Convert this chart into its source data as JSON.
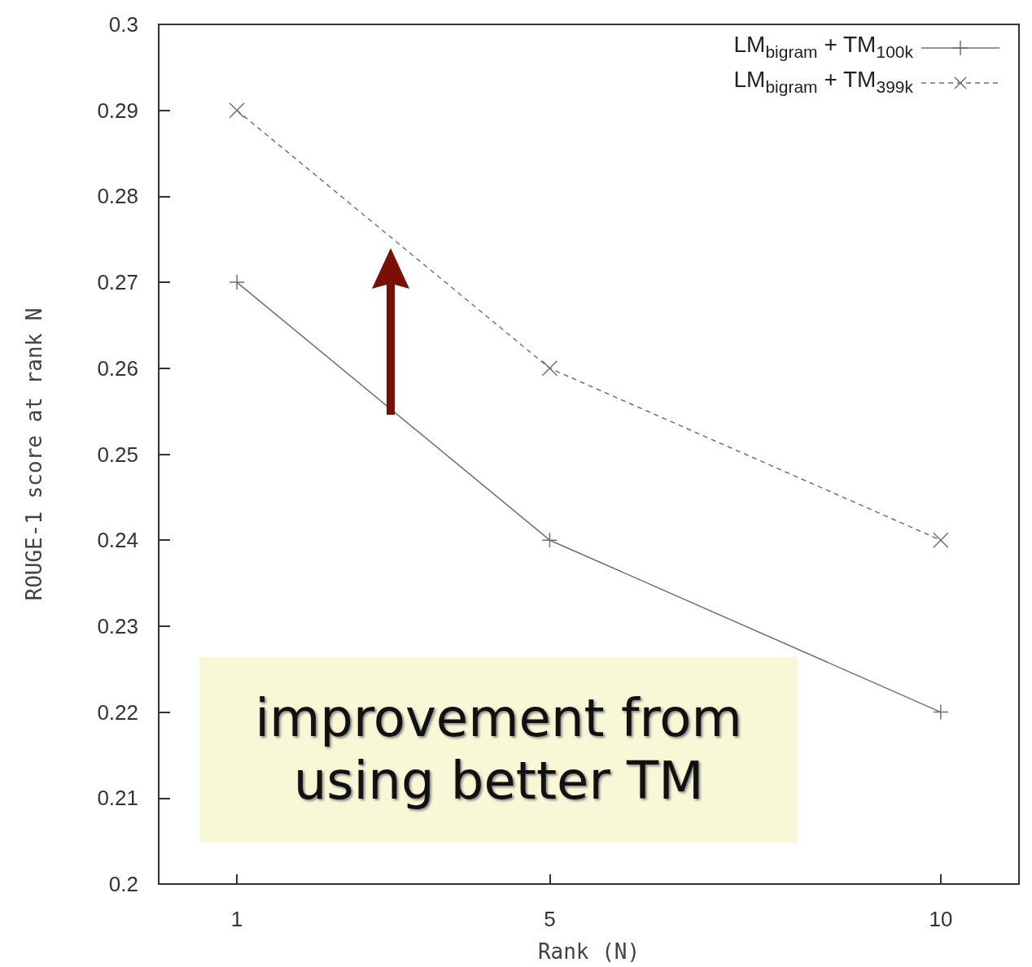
{
  "chart_data": {
    "type": "line",
    "xlabel": "Rank (N)",
    "ylabel": "ROUGE-1 score at rank N",
    "x": [
      1,
      5,
      10
    ],
    "series": [
      {
        "name": "LM$_{bigram}$ + TM$_{100k}$",
        "color": "#707070",
        "values": [
          0.27,
          0.24,
          0.22
        ],
        "marker": "cross",
        "line_style": "solid"
      },
      {
        "name": "LM$_{bigram}$ + TM$_{399k}$",
        "color": "#707070",
        "values": [
          0.29,
          0.26,
          0.24
        ],
        "marker": "x",
        "line_style": "dashed"
      }
    ],
    "xlim": [
      0,
      11
    ],
    "xticks": [
      1,
      5,
      10
    ],
    "ylim": [
      0.2,
      0.3
    ],
    "yticks": [
      0.2,
      0.21,
      0.22,
      0.23,
      0.24,
      0.25,
      0.26,
      0.27,
      0.28,
      0.29,
      0.3
    ],
    "grid": false,
    "legend": "top right",
    "annotations": [
      "improvement from using better TM"
    ]
  }
}
